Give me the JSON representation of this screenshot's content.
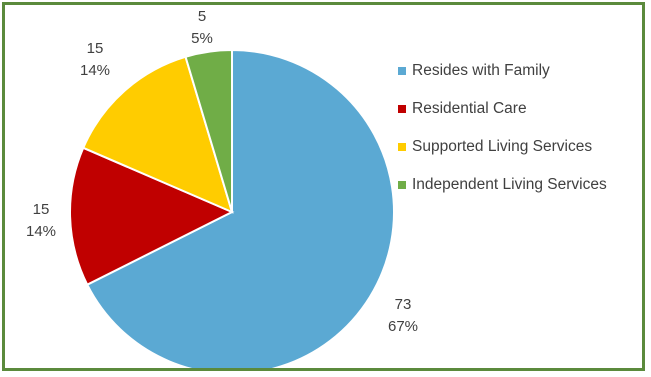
{
  "chart_data": {
    "type": "pie",
    "title": "",
    "slices": [
      {
        "label": "Resides with Family",
        "value": 73,
        "percent": "67%",
        "color": "#5ba9d3"
      },
      {
        "label": "Residential Care",
        "value": 15,
        "percent": "14%",
        "color": "#c00000"
      },
      {
        "label": "Supported Living Services",
        "value": 15,
        "percent": "14%",
        "color": "#ffcc00"
      },
      {
        "label": "Independent Living Services",
        "value": 5,
        "percent": "5%",
        "color": "#70ad47"
      }
    ],
    "legend_position": "right",
    "start_angle_deg": 0,
    "direction": "clockwise"
  }
}
